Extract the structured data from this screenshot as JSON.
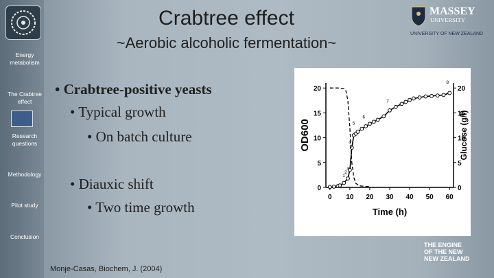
{
  "slide": {
    "title": "Crabtree effect",
    "subtitle": "~Aerobic alcoholic fermentation~",
    "citation": "Monje-Casas, Biochem, J. (2004)"
  },
  "sidebar": {
    "items": [
      {
        "label": "Energy metabolism"
      },
      {
        "label": "The Crabtree effect"
      },
      {
        "label": "Research questions"
      },
      {
        "label": "Methodology"
      },
      {
        "label": "Pilot study"
      },
      {
        "label": "Conclusion"
      }
    ]
  },
  "bullets": [
    {
      "text": "Crabtree-positive yeasts"
    },
    {
      "text": "Typical growth"
    },
    {
      "text": "On batch culture"
    },
    {
      "text": "Diauxic shift"
    },
    {
      "text": "Two time growth"
    }
  ],
  "branding": {
    "university_name": "MASSEY",
    "university_word": "UNIVERSITY",
    "university_tag": "UNIVERSITY OF NEW ZEALAND",
    "engine_line1": "THE ENGINE",
    "engine_line2": "OF THE NEW",
    "engine_line3": "NEW ZEALAND"
  },
  "chart_data": {
    "type": "line",
    "xlabel": "Time (h)",
    "ylabel": "OD600",
    "y2label": "Glucose (g/l)",
    "xlim": [
      -2,
      62
    ],
    "ylim": [
      0,
      21
    ],
    "y2lim": [
      0,
      21
    ],
    "xticks": [
      0,
      10,
      20,
      30,
      40,
      50,
      60
    ],
    "yticks": [
      0,
      5,
      10,
      15,
      20
    ],
    "y2ticks": [
      0,
      5,
      10,
      15,
      20
    ],
    "series": [
      {
        "values": [
          [
            0,
            0.1
          ],
          [
            2,
            0.15
          ],
          [
            4,
            0.25
          ],
          [
            5,
            0.4
          ],
          [
            7,
            0.9
          ],
          [
            9,
            1.8
          ],
          [
            10,
            3.5
          ],
          [
            11,
            8.0
          ],
          [
            12,
            10.5
          ],
          [
            13,
            10.8
          ],
          [
            14,
            11.2
          ],
          [
            16,
            11.8
          ],
          [
            18,
            12.3
          ],
          [
            20,
            12.8
          ],
          [
            22,
            13.2
          ],
          [
            24,
            13.6
          ],
          [
            27,
            14.3
          ],
          [
            30,
            15.5
          ],
          [
            33,
            16.2
          ],
          [
            36,
            16.8
          ],
          [
            38,
            17.2
          ],
          [
            40,
            17.6
          ],
          [
            42,
            17.9
          ],
          [
            45,
            18.1
          ],
          [
            48,
            18.3
          ],
          [
            51,
            18.4
          ],
          [
            54,
            18.5
          ],
          [
            57,
            18.6
          ],
          [
            60,
            19.0
          ]
        ]
      },
      {
        "values": [
          [
            0,
            20.0
          ],
          [
            4,
            20.0
          ],
          [
            7,
            19.9
          ],
          [
            8,
            19.5
          ],
          [
            9,
            17.5
          ],
          [
            10,
            12.0
          ],
          [
            11,
            5.0
          ],
          [
            12,
            2.0
          ],
          [
            13,
            0.8
          ],
          [
            15,
            0.3
          ],
          [
            18,
            0.2
          ],
          [
            20,
            0.2
          ]
        ]
      }
    ],
    "annotations": [
      "1",
      "2",
      "3",
      "4",
      "5",
      "6",
      "7",
      "8"
    ]
  },
  "colors": {
    "text": "#1f1f1f",
    "accent_orange": "#f5a623",
    "massey_navy": "#1f2a44"
  }
}
